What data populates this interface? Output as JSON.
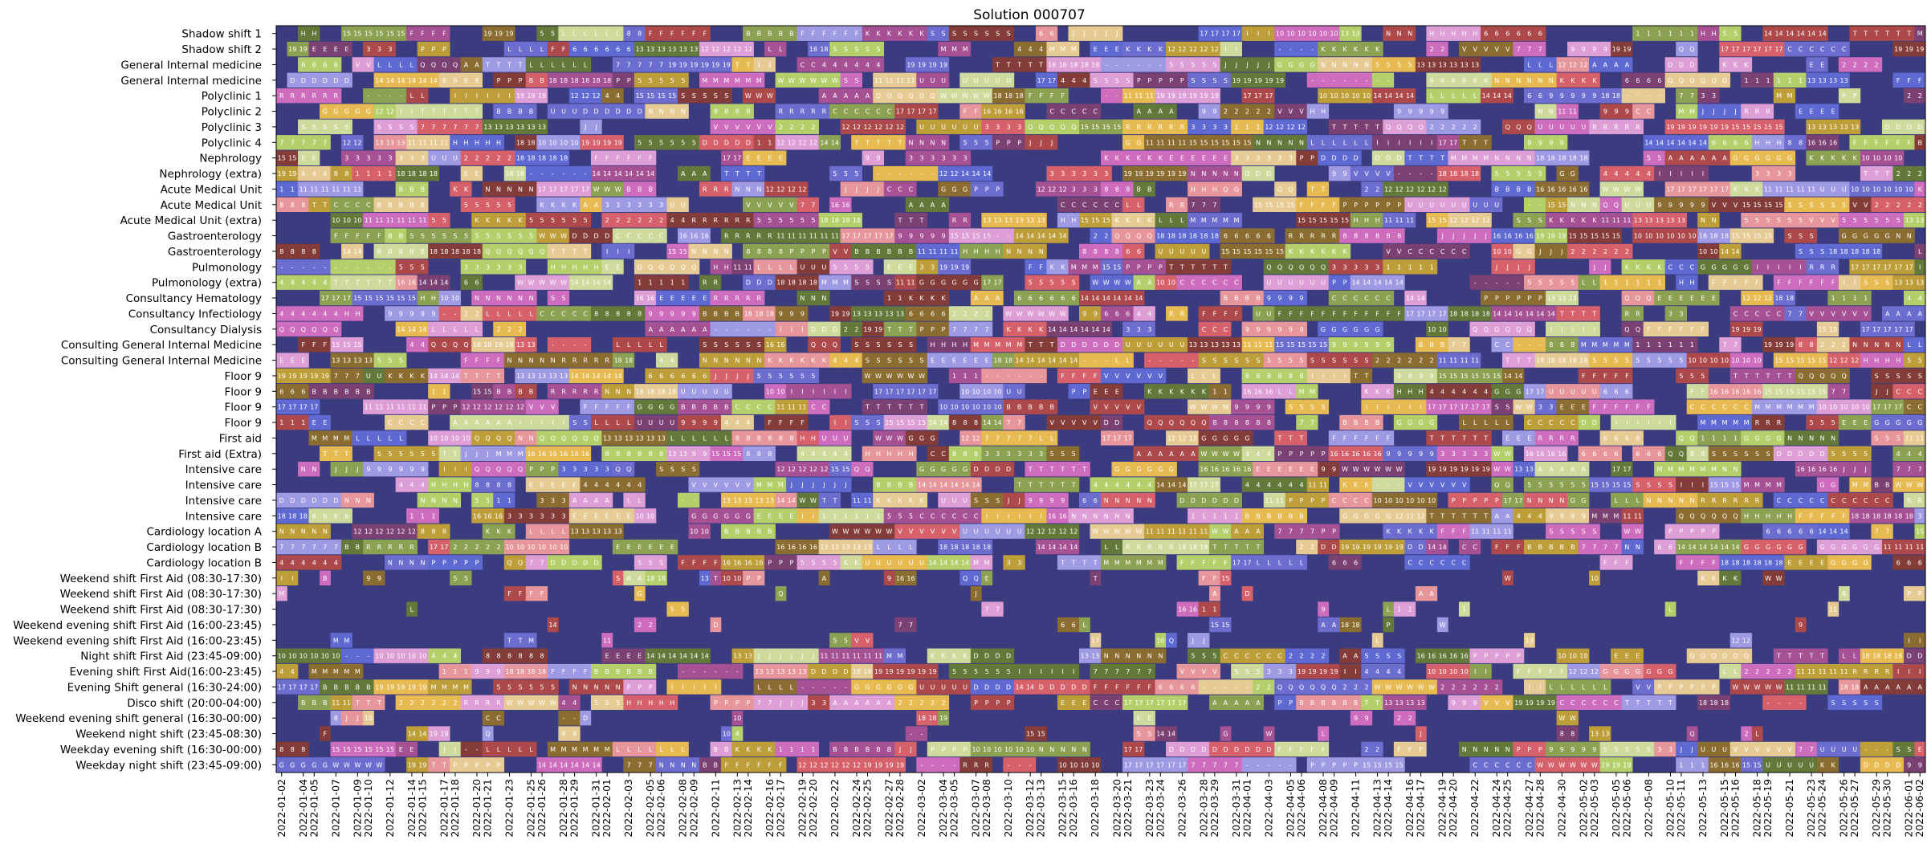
{
  "chart_data": {
    "type": "heatmap",
    "title": "Solution 000707",
    "xlabel": "",
    "ylabel": "",
    "background_color": "#3b3b7f",
    "palette": [
      "#9e9ae3",
      "#5e6ad2",
      "#6b6ecf",
      "#637939",
      "#8ca252",
      "#b5cf6b",
      "#cedb9c",
      "#8c6d31",
      "#bd9e39",
      "#e7ba52",
      "#e7cb94",
      "#843c39",
      "#ad494a",
      "#d6616b",
      "#e7969c",
      "#7b4173",
      "#a55194",
      "#ce6dbd",
      "#de9ed6"
    ],
    "rows": [
      "Shadow shift 1",
      "Shadow shift 2",
      "General Internal medicine",
      "General Internal medicine",
      "Polyclinic 1",
      "Polyclinic 2",
      "Polyclinic 3",
      "Polyclinic 4",
      "Nephrology",
      "Nephrology (extra)",
      "Acute Medical Unit",
      "Acute Medical Unit",
      "Acute Medical Unit (extra)",
      "Gastroenterology",
      "Gastroenterology",
      "Pulmonology",
      "Pulmonology (extra)",
      "Consultancy Hematology",
      "Consultancy Infectiology",
      "Consultancy Dialysis",
      "Consulting General Internal Medicine",
      "Consulting General Internal Medicine",
      "Floor 9",
      "Floor 9",
      "Floor 9",
      "Floor 9",
      "First aid",
      "First aid (Extra)",
      "Intensive care",
      "Intensive care",
      "Intensive care",
      "Intensive care",
      "Cardiology location A",
      "Cardiology location B",
      "Cardiology location B",
      "Weekend shift First Aid (08:30-17:30)",
      "Weekend shift First Aid (08:30-17:30)",
      "Weekend shift First Aid (08:30-17:30)",
      "Weekend evening shift First Aid  (16:00-23:45)",
      "Weekend evening shift First Aid  (16:00-23:45)",
      "Night shift First Aid (23:45-09:00)",
      "Evening shift First Aid(16:00-23:45)",
      "Evening Shift general (16:30-24:00)",
      "Disco shift (20:00-04:00)",
      "Weekend evening shift general (16:30-00:00)",
      "Weekend night shift (23:45-08:30)",
      "Weekday evening shift (16:30-00:00)",
      "Weekday night shift (23:45-09:00)"
    ],
    "x_start": "2022-01-02",
    "x_end": "2022-06-02",
    "x_tick_labels": [
      "2022-01-02",
      "2022-01-04",
      "2022-01-05",
      "2022-01-07",
      "2022-01-09",
      "2022-01-10",
      "2022-01-12",
      "2022-01-14",
      "2022-01-15",
      "2022-01-17",
      "2022-01-18",
      "2022-01-20",
      "2022-01-21",
      "2022-01-23",
      "2022-01-25",
      "2022-01-26",
      "2022-01-28",
      "2022-01-29",
      "2022-01-31",
      "2022-02-01",
      "2022-02-03",
      "2022-02-05",
      "2022-02-06",
      "2022-02-08",
      "2022-02-09",
      "2022-02-11",
      "2022-02-13",
      "2022-02-14",
      "2022-02-16",
      "2022-02-17",
      "2022-02-19",
      "2022-02-20",
      "2022-02-22",
      "2022-02-24",
      "2022-02-25",
      "2022-02-27",
      "2022-02-28",
      "2022-03-02",
      "2022-03-04",
      "2022-03-05",
      "2022-03-07",
      "2022-03-08",
      "2022-03-10",
      "2022-03-12",
      "2022-03-13",
      "2022-03-15",
      "2022-03-16",
      "2022-03-18",
      "2022-03-20",
      "2022-03-21",
      "2022-03-23",
      "2022-03-24",
      "2022-03-26",
      "2022-03-28",
      "2022-03-29",
      "2022-03-31",
      "2022-04-01",
      "2022-04-03",
      "2022-04-05",
      "2022-04-06",
      "2022-04-08",
      "2022-04-09",
      "2022-04-11",
      "2022-04-13",
      "2022-04-14",
      "2022-04-16",
      "2022-04-17",
      "2022-04-19",
      "2022-04-20",
      "2022-04-22",
      "2022-04-24",
      "2022-04-25",
      "2022-04-27",
      "2022-04-28",
      "2022-04-30",
      "2022-05-02",
      "2022-05-03",
      "2022-05-05",
      "2022-05-06",
      "2022-05-08",
      "2022-05-10",
      "2022-05-11",
      "2022-05-13",
      "2022-05-15",
      "2022-05-16",
      "2022-05-18",
      "2022-05-19",
      "2022-05-21",
      "2022-05-23",
      "2022-05-24",
      "2022-05-26",
      "2022-05-27",
      "2022-05-29",
      "2022-05-30",
      "2022-06-01",
      "2022-06-02"
    ],
    "cell_labels_sample": [
      "R",
      "W",
      "U",
      "13",
      "14",
      "15",
      "16",
      "17",
      "18",
      "19",
      "A",
      "B",
      "C",
      "D",
      "E",
      "F",
      "G",
      "H",
      "I",
      "J",
      "K",
      "L",
      "M",
      "N",
      "P",
      "Q",
      "S",
      "T",
      "V",
      "1",
      "2",
      "3",
      "4",
      "5",
      "6",
      "7",
      "8",
      "9",
      "10",
      "11",
      "12",
      "-"
    ],
    "legend": "none",
    "grid": false
  }
}
